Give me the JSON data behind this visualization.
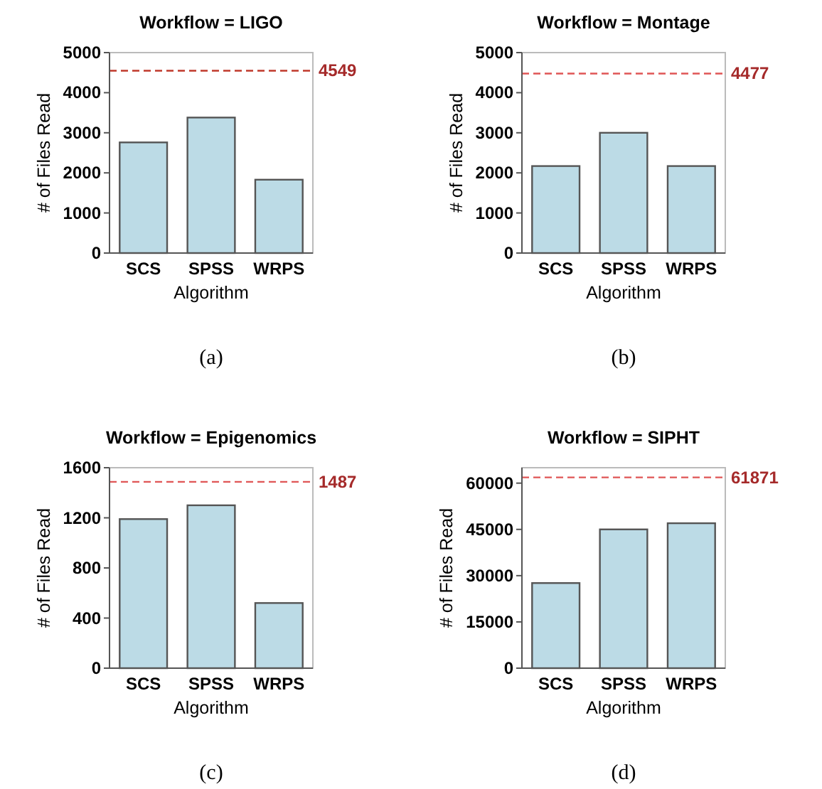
{
  "chart_data": [
    {
      "type": "bar",
      "title": "Workflow = LIGO",
      "xlabel": "Algorithm",
      "ylabel": "# of Files Read",
      "categories": [
        "SCS",
        "SPSS",
        "WRPS"
      ],
      "values": [
        2760,
        3380,
        1830
      ],
      "color": "#bcdbe6",
      "ylim": [
        0,
        5000
      ],
      "yticks": [
        0,
        1000,
        2000,
        3000,
        4000,
        5000
      ],
      "ref_lines": [
        {
          "axis": "y",
          "value": 4549,
          "label": "4549",
          "color": "#c0392b",
          "line_style": "dashed"
        }
      ],
      "annotations": [
        "(a)"
      ]
    },
    {
      "type": "bar",
      "title": "Workflow = Montage",
      "xlabel": "Algorithm",
      "ylabel": "# of Files Read",
      "categories": [
        "SCS",
        "SPSS",
        "WRPS"
      ],
      "values": [
        2170,
        3000,
        2170
      ],
      "color": "#bcdbe6",
      "ylim": [
        0,
        5000
      ],
      "yticks": [
        0,
        1000,
        2000,
        3000,
        4000,
        5000
      ],
      "ref_lines": [
        {
          "axis": "y",
          "value": 4477,
          "label": "4477",
          "color": "#e05555",
          "line_style": "dashed"
        }
      ],
      "annotations": [
        "(b)"
      ]
    },
    {
      "type": "bar",
      "title": "Workflow = Epigenomics",
      "xlabel": "Algorithm",
      "ylabel": "# of Files Read",
      "categories": [
        "SCS",
        "SPSS",
        "WRPS"
      ],
      "values": [
        1190,
        1300,
        520
      ],
      "color": "#bcdbe6",
      "ylim": [
        0,
        1600
      ],
      "yticks": [
        0,
        400,
        800,
        1200,
        1600
      ],
      "ref_lines": [
        {
          "axis": "y",
          "value": 1487,
          "label": "1487",
          "color": "#e05555",
          "line_style": "dashed"
        }
      ],
      "annotations": [
        "(c)"
      ]
    },
    {
      "type": "bar",
      "title": "Workflow = SIPHT",
      "xlabel": "Algorithm",
      "ylabel": "# of Files Read",
      "categories": [
        "SCS",
        "SPSS",
        "WRPS"
      ],
      "values": [
        27600,
        45000,
        47000
      ],
      "color": "#bcdbe6",
      "ylim": [
        0,
        65000
      ],
      "yticks": [
        0,
        15000,
        30000,
        45000,
        60000
      ],
      "ref_lines": [
        {
          "axis": "y",
          "value": 61871,
          "label": "61871",
          "color": "#e05555",
          "line_style": "dashed"
        }
      ],
      "annotations": [
        "(d)"
      ]
    }
  ]
}
